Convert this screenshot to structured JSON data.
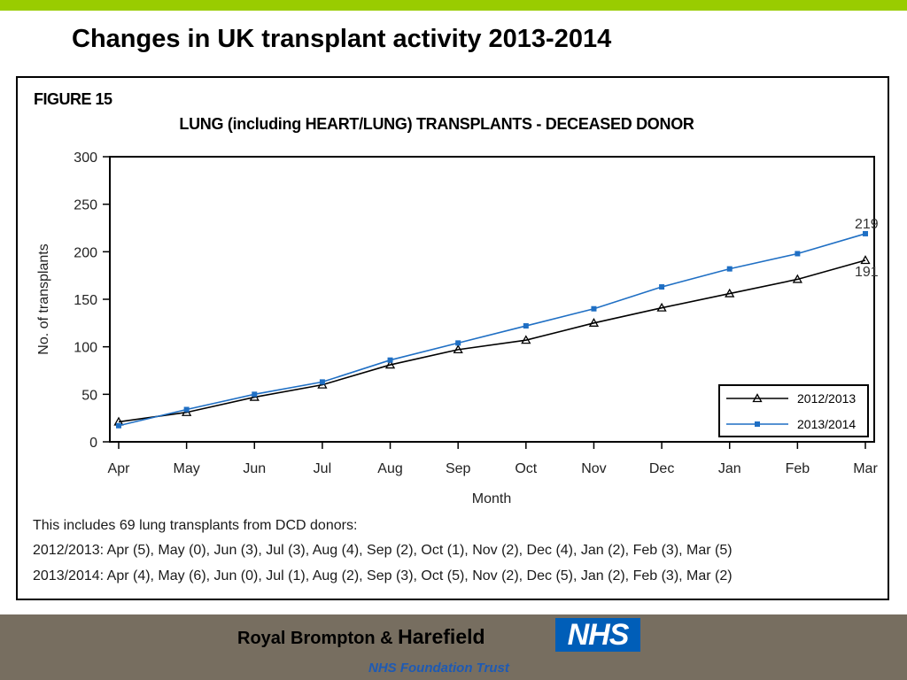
{
  "slide": {
    "title": "Changes in UK transplant activity 2013-2014",
    "accent_color": "#99cc00"
  },
  "figure": {
    "label": "FIGURE 15",
    "notes": [
      "This includes 69 lung transplants from DCD donors:",
      "2012/2013: Apr (5), May (0), Jun (3), Jul (3), Aug (4), Sep (2), Oct (1), Nov (2), Dec (4), Jan (2), Feb (3), Mar (5)",
      "2013/2014: Apr (4), May (6), Jun (0), Jul (1), Aug (2), Sep (3), Oct (5), Nov (2), Dec (5), Jan (2), Feb (3), Mar (2)"
    ]
  },
  "chart_data": {
    "type": "line",
    "title": "LUNG (including HEART/LUNG) TRANSPLANTS - DECEASED DONOR",
    "xlabel": "Month",
    "ylabel": "No. of transplants",
    "categories": [
      "Apr",
      "May",
      "Jun",
      "Jul",
      "Aug",
      "Sep",
      "Oct",
      "Nov",
      "Dec",
      "Jan",
      "Feb",
      "Mar"
    ],
    "ylim": [
      0,
      300
    ],
    "yticks": [
      0,
      50,
      100,
      150,
      200,
      250,
      300
    ],
    "grid": false,
    "legend_position": "bottom-right",
    "series": [
      {
        "name": "2012/2013",
        "color": "#000000",
        "marker": "triangle",
        "values": [
          21,
          31,
          47,
          60,
          81,
          97,
          107,
          125,
          141,
          156,
          171,
          191
        ]
      },
      {
        "name": "2013/2014",
        "color": "#1f6fc4",
        "marker": "square",
        "values": [
          17,
          34,
          50,
          63,
          86,
          104,
          122,
          140,
          163,
          182,
          198,
          219
        ]
      }
    ],
    "end_labels": [
      "191",
      "219"
    ]
  },
  "footer": {
    "org_prefix": "Royal Brompton & ",
    "org_suffix": "Harefield",
    "logo_text": "NHS",
    "trust_text": "NHS Foundation Trust",
    "bar_color": "#776e60",
    "logo_color": "#005eb8"
  }
}
